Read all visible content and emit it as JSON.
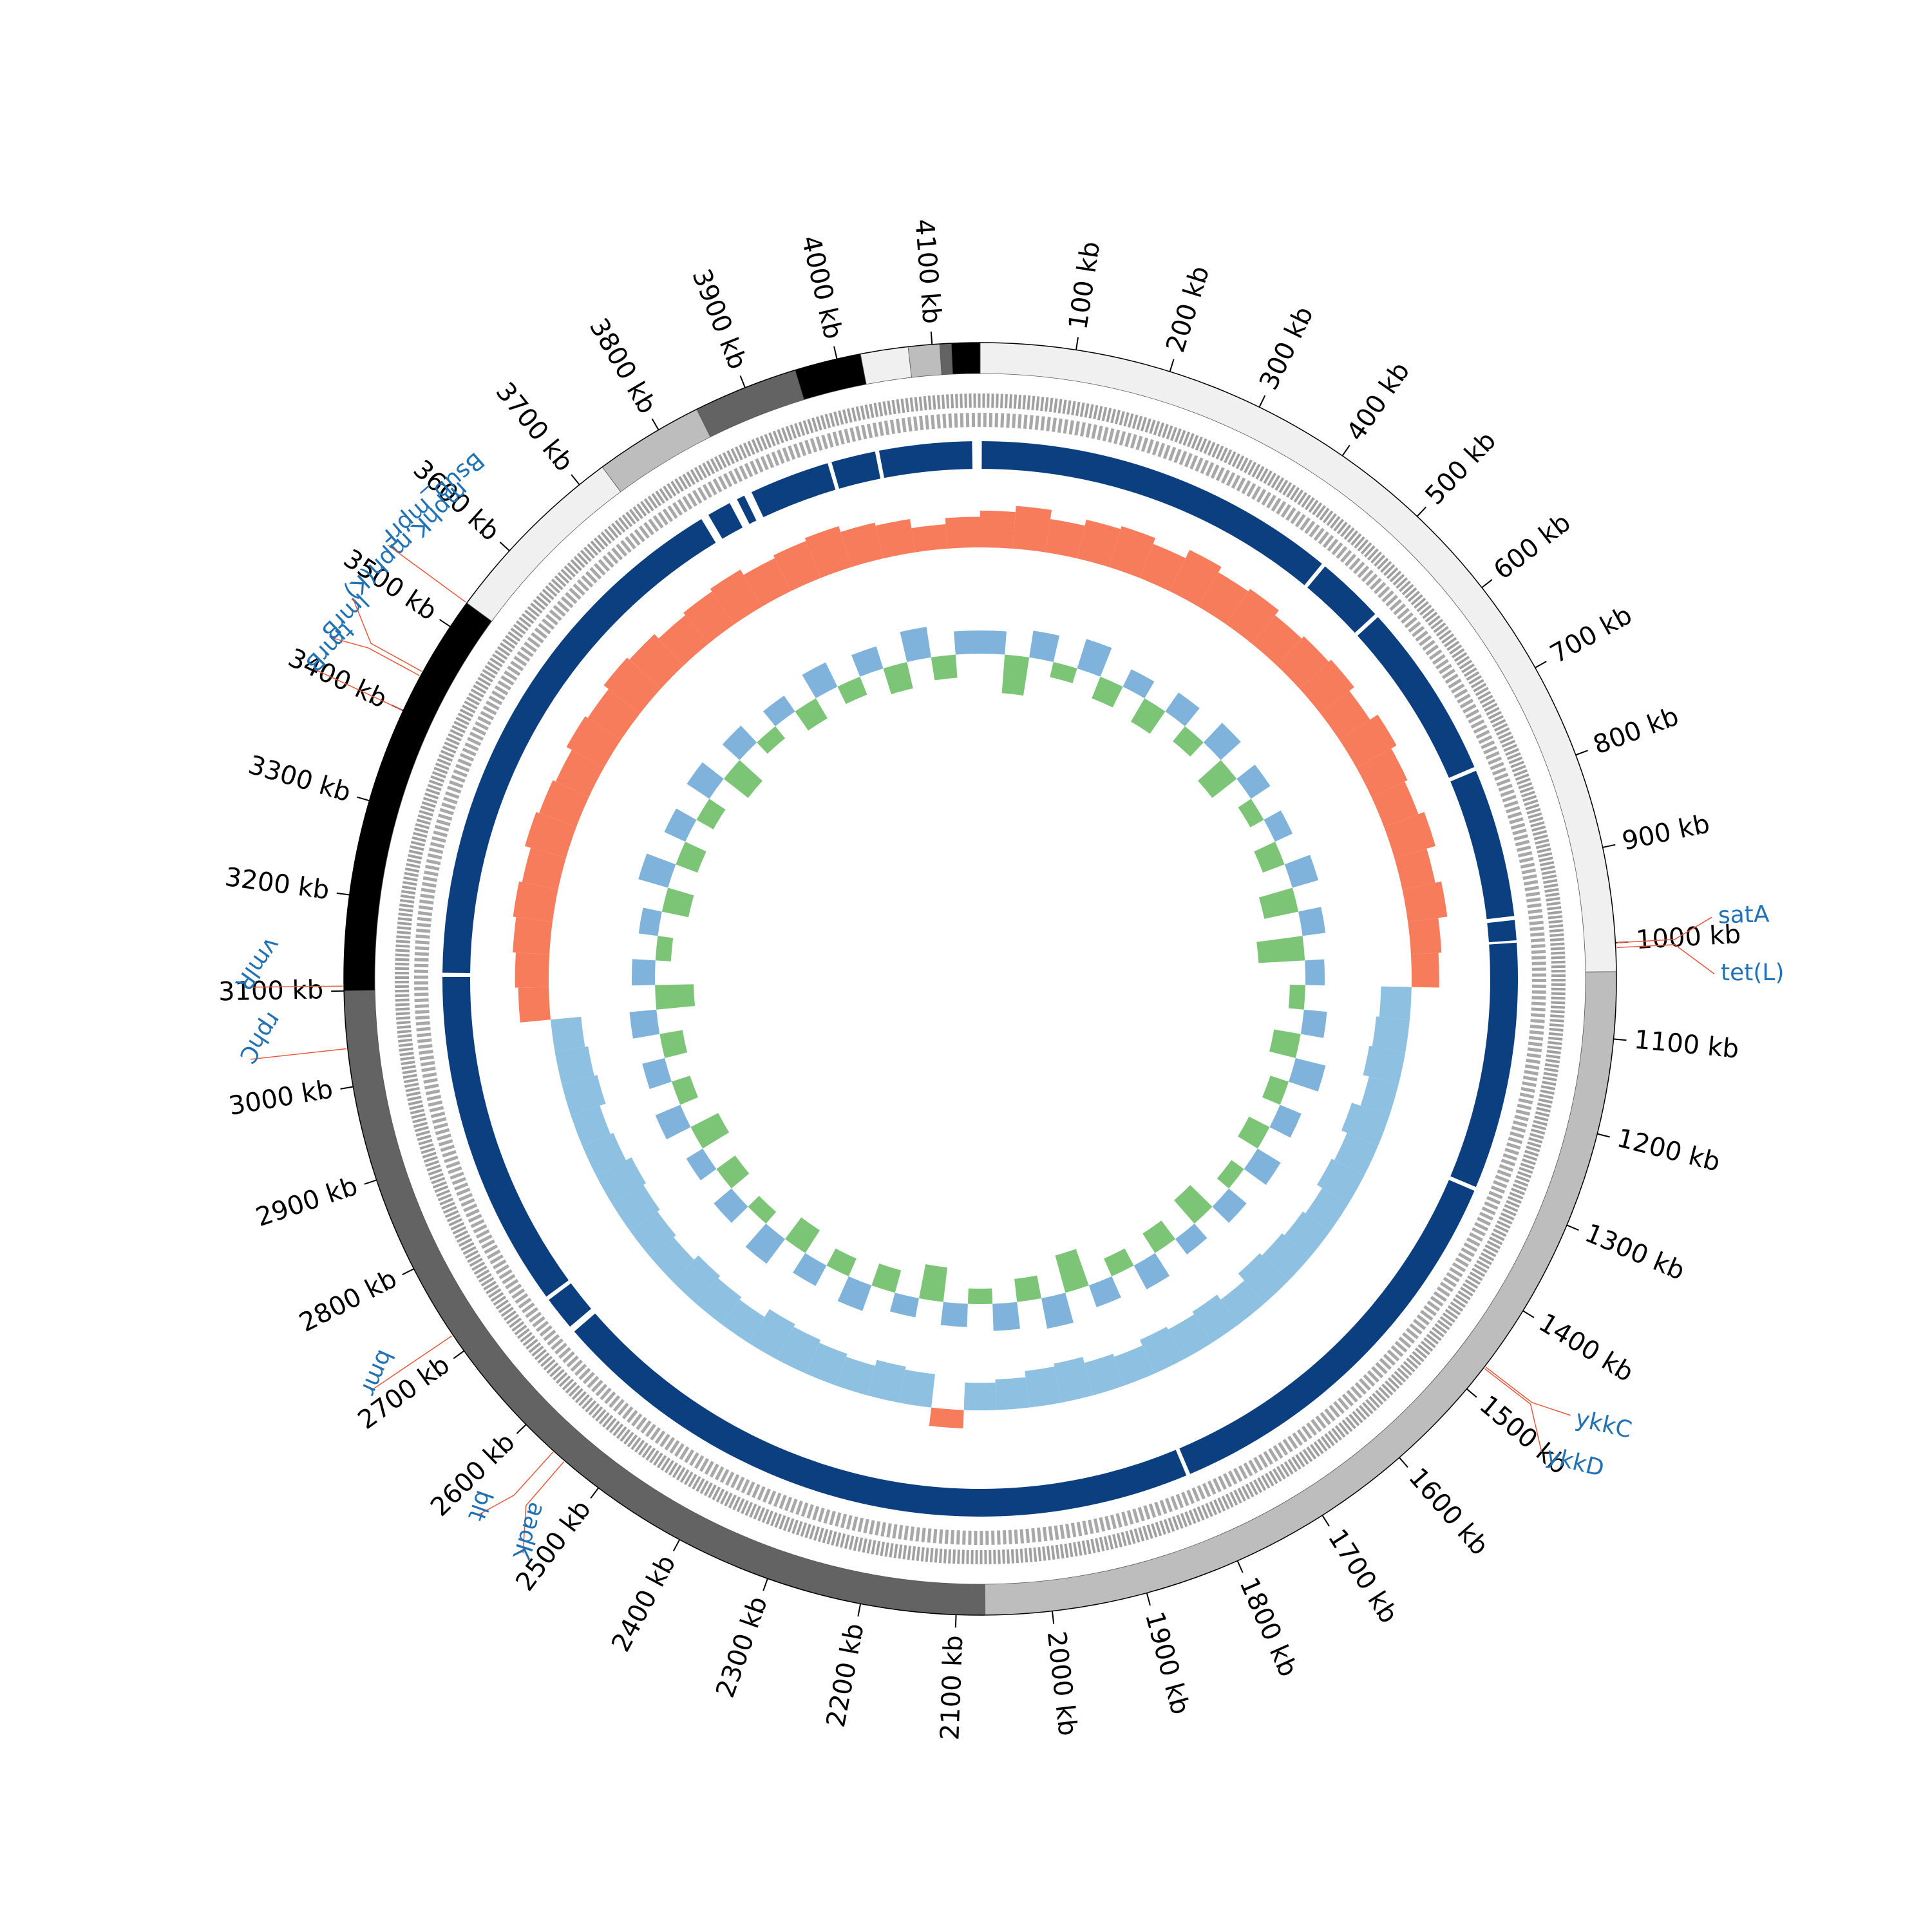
{
  "chart_data": {
    "type": "circos",
    "xlim": [
      0,
      4150
    ],
    "xticks": [
      {
        "value": 100,
        "label": "100 kb"
      },
      {
        "value": 200,
        "label": "200 kb"
      },
      {
        "value": 300,
        "label": "300 kb"
      },
      {
        "value": 400,
        "label": "400 kb"
      },
      {
        "value": 500,
        "label": "500 kb"
      },
      {
        "value": 600,
        "label": "600 kb"
      },
      {
        "value": 700,
        "label": "700 kb"
      },
      {
        "value": 800,
        "label": "800 kb"
      },
      {
        "value": 900,
        "label": "900 kb"
      },
      {
        "value": 1000,
        "label": "1000 kb"
      },
      {
        "value": 1100,
        "label": "1100 kb"
      },
      {
        "value": 1200,
        "label": "1200 kb"
      },
      {
        "value": 1300,
        "label": "1300 kb"
      },
      {
        "value": 1400,
        "label": "1400 kb"
      },
      {
        "value": 1500,
        "label": "1500 kb"
      },
      {
        "value": 1600,
        "label": "1600 kb"
      },
      {
        "value": 1700,
        "label": "1700 kb"
      },
      {
        "value": 1800,
        "label": "1800 kb"
      },
      {
        "value": 1900,
        "label": "1900 kb"
      },
      {
        "value": 2000,
        "label": "2000 kb"
      },
      {
        "value": 2100,
        "label": "2100 kb"
      },
      {
        "value": 2200,
        "label": "2200 kb"
      },
      {
        "value": 2300,
        "label": "2300 kb"
      },
      {
        "value": 2400,
        "label": "2400 kb"
      },
      {
        "value": 2500,
        "label": "2500 kb"
      },
      {
        "value": 2600,
        "label": "2600 kb"
      },
      {
        "value": 2700,
        "label": "2700 kb"
      },
      {
        "value": 2800,
        "label": "2800 kb"
      },
      {
        "value": 2900,
        "label": "2900 kb"
      },
      {
        "value": 3000,
        "label": "3000 kb"
      },
      {
        "value": 3100,
        "label": "3100 kb"
      },
      {
        "value": 3200,
        "label": "3200 kb"
      },
      {
        "value": 3300,
        "label": "3300 kb"
      },
      {
        "value": 3400,
        "label": "3400 kb"
      },
      {
        "value": 3500,
        "label": "3500 kb"
      },
      {
        "value": 3600,
        "label": "3600 kb"
      },
      {
        "value": 3700,
        "label": "3700 kb"
      },
      {
        "value": 3800,
        "label": "3800 kb"
      },
      {
        "value": 3900,
        "label": "3900 kb"
      },
      {
        "value": 4000,
        "label": "4000 kb"
      },
      {
        "value": 4100,
        "label": "4100 kb"
      }
    ],
    "contigs": [
      {
        "start": 0,
        "end": 1030,
        "color": "#f0f0f0"
      },
      {
        "start": 1030,
        "end": 2070,
        "color": "#bdbdbd"
      },
      {
        "start": 2070,
        "end": 3100,
        "color": "#636363"
      },
      {
        "start": 3100,
        "end": 3530,
        "color": "#000000"
      },
      {
        "start": 3530,
        "end": 3730,
        "color": "#f0f0f0"
      },
      {
        "start": 3730,
        "end": 3845,
        "color": "#bdbdbd"
      },
      {
        "start": 3845,
        "end": 3955,
        "color": "#636363"
      },
      {
        "start": 3955,
        "end": 4025,
        "color": "#000000"
      },
      {
        "start": 4025,
        "end": 4075,
        "color": "#f0f0f0"
      },
      {
        "start": 4075,
        "end": 4108,
        "color": "#bdbdbd"
      },
      {
        "start": 4108,
        "end": 4120,
        "color": "#636363"
      },
      {
        "start": 4120,
        "end": 4150,
        "color": "#000000"
      }
    ],
    "blocks_color": "#0b3f7f",
    "blocks": [
      [
        2,
        455
      ],
      [
        460,
        545
      ],
      [
        550,
        770
      ],
      [
        775,
        960
      ],
      [
        965,
        990
      ],
      [
        993,
        1300
      ],
      [
        1305,
        1810
      ],
      [
        1815,
        2640
      ],
      [
        2648,
        2690
      ],
      [
        2695,
        3115
      ],
      [
        3120,
        3790
      ],
      [
        3800,
        3830
      ],
      [
        3840,
        3850
      ],
      [
        3860,
        3960
      ],
      [
        3965,
        4020
      ],
      [
        4025,
        4140
      ]
    ],
    "genes_color": "#2171b5",
    "leader_color": "#e8553a",
    "genes": [
      {
        "name": "satA",
        "position": 1000
      },
      {
        "name": "tet(L)",
        "position": 1005
      },
      {
        "name": "ykkC",
        "position": 1470
      },
      {
        "name": "ykkD",
        "position": 1472
      },
      {
        "name": "aadK",
        "position": 2545
      },
      {
        "name": "blt",
        "position": 2560
      },
      {
        "name": "bmr",
        "position": 2720
      },
      {
        "name": "rphC",
        "position": 3040
      },
      {
        "name": "vmlR",
        "position": 3105
      },
      {
        "name": "tmrB",
        "position": 3400
      },
      {
        "name": "lmrB",
        "position": 3440
      },
      {
        "name": "mphK,mph(K)",
        "position": 3445
      },
      {
        "name": "Bsub_mprF",
        "position": 3530
      }
    ],
    "x": [
      0,
      50,
      100,
      150,
      200,
      250,
      300,
      350,
      400,
      450,
      500,
      550,
      600,
      650,
      700,
      750,
      800,
      850,
      900,
      950,
      1000,
      1050,
      1100,
      1150,
      1200,
      1250,
      1300,
      1350,
      1400,
      1450,
      1500,
      1550,
      1600,
      1650,
      1700,
      1750,
      1800,
      1850,
      1900,
      1950,
      2000,
      2050,
      2100,
      2150,
      2200,
      2250,
      2300,
      2350,
      2400,
      2450,
      2500,
      2550,
      2600,
      2650,
      2700,
      2750,
      2800,
      2850,
      2900,
      2950,
      3000,
      3050,
      3100,
      3150,
      3200,
      3250,
      3300,
      3350,
      3400,
      3450,
      3500,
      3550,
      3600,
      3650,
      3700,
      3750,
      3800,
      3850,
      3900,
      3950,
      4000,
      4050,
      4100
    ],
    "ylim": [
      -1,
      1
    ],
    "tracks": [
      {
        "color_positive": "#f67c5c",
        "color_negative": "#8ec0e2",
        "values": [
          0.6,
          0.7,
          0.55,
          0.65,
          0.7,
          0.6,
          0.75,
          0.65,
          0.7,
          0.6,
          0.65,
          0.7,
          0.6,
          0.75,
          0.65,
          0.6,
          0.7,
          0.55,
          0.65,
          0.5,
          0.45,
          -0.5,
          -0.55,
          -0.6,
          -0.5,
          -0.65,
          -0.55,
          -0.6,
          -0.5,
          -0.55,
          -0.6,
          -0.65,
          -0.5,
          -0.6,
          -0.55,
          -0.6,
          -0.5,
          -0.55,
          -0.65,
          -0.6,
          -0.5,
          -0.45,
          0.3,
          -0.55,
          -0.6,
          -0.5,
          -0.55,
          -0.6,
          -0.65,
          -0.5,
          -0.55,
          -0.6,
          -0.5,
          -0.55,
          -0.6,
          -0.65,
          -0.55,
          -0.5,
          -0.6,
          -0.55,
          -0.5,
          0.5,
          0.55,
          0.6,
          0.65,
          0.6,
          0.7,
          0.65,
          0.6,
          0.7,
          0.65,
          0.75,
          0.7,
          0.6,
          0.65,
          0.7,
          0.6,
          0.65,
          0.7,
          0.6,
          0.55,
          0.4,
          0.5
        ]
      },
      {
        "color_positive": "#7fb3dc",
        "color_negative": "#7cc576",
        "values": [
          0.3,
          -0.5,
          0.35,
          -0.2,
          0.4,
          -0.3,
          0.25,
          -0.35,
          0.3,
          -0.25,
          0.35,
          -0.4,
          0.3,
          -0.2,
          0.25,
          -0.3,
          0.35,
          -0.45,
          0.3,
          -0.6,
          0.25,
          -0.2,
          0.3,
          -0.35,
          0.4,
          -0.25,
          0.3,
          -0.3,
          0.35,
          -0.2,
          0.3,
          -0.4,
          0.25,
          -0.3,
          0.35,
          -0.25,
          0.3,
          -0.5,
          0.4,
          -0.3,
          0.35,
          -0.2,
          0.3,
          -0.45,
          0.25,
          -0.3,
          0.35,
          -0.25,
          0.3,
          -0.35,
          0.4,
          -0.2,
          0.3,
          -0.3,
          0.25,
          -0.4,
          0.35,
          -0.25,
          0.3,
          -0.3,
          0.35,
          -0.5,
          0.3,
          -0.2,
          0.25,
          -0.35,
          0.4,
          -0.3,
          0.3,
          -0.25,
          0.35,
          -0.4,
          0.3,
          -0.2,
          0.25,
          -0.3,
          0.35,
          -0.25,
          0.3,
          -0.35,
          0.4,
          -0.3,
          0.3
        ]
      }
    ]
  }
}
